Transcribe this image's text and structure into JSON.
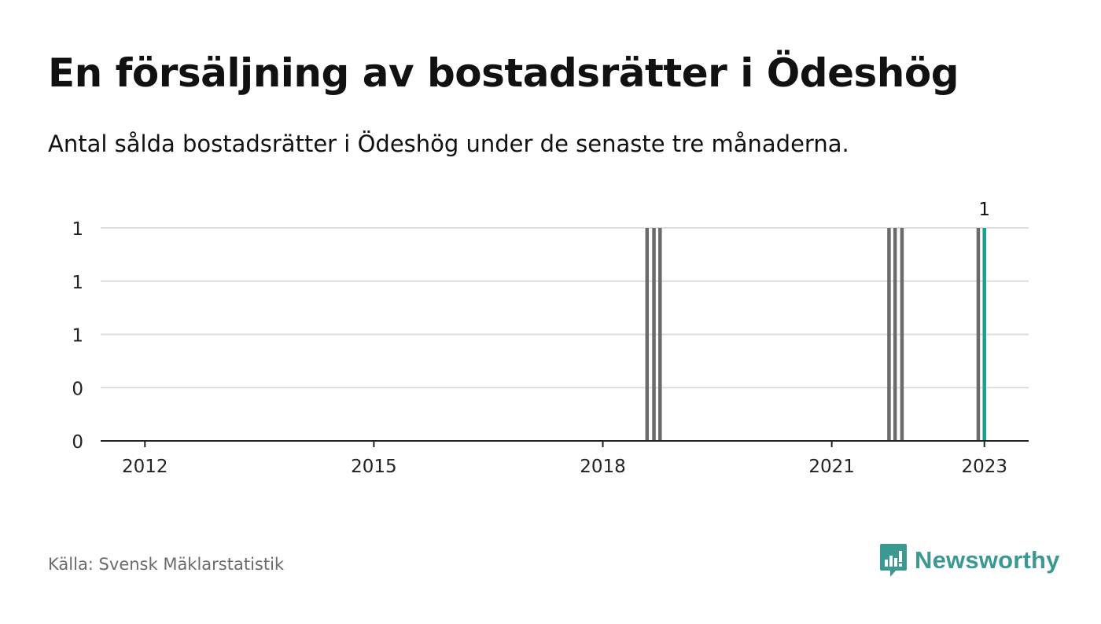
{
  "title": "En försäljning av bostadsrätter i Ödeshög",
  "subtitle": "Antal sålda bostadsrätter i Ödeshög under de senaste tre månaderna.",
  "source": "Källa: Svensk Mäklarstatistik",
  "brand": "Newsworthy",
  "colors": {
    "bar": "#6b6b6b",
    "highlight": "#1a9e93",
    "grid": "#dddddd",
    "axis": "#222222",
    "brand": "#3a9a92"
  },
  "chart_data": {
    "type": "bar",
    "title": "En försäljning av bostadsrätter i Ödeshög",
    "subtitle": "Antal sålda bostadsrätter i Ödeshög under de senaste tre månaderna.",
    "xlabel": "",
    "ylabel": "",
    "x_ticks": [
      "2012",
      "2015",
      "2018",
      "2021",
      "2023"
    ],
    "y_ticks": [
      {
        "value": 0,
        "label": "0"
      },
      {
        "value": 0.25,
        "label": "0"
      },
      {
        "value": 0.5,
        "label": "1"
      },
      {
        "value": 0.75,
        "label": "1"
      },
      {
        "value": 1,
        "label": "1"
      }
    ],
    "ylim": [
      0,
      1
    ],
    "xlim": [
      2011.42,
      2023.58
    ],
    "grid": true,
    "bars": [
      {
        "x": 2018.58,
        "value": 1,
        "highlight": false
      },
      {
        "x": 2018.67,
        "value": 1,
        "highlight": false
      },
      {
        "x": 2018.75,
        "value": 1,
        "highlight": false
      },
      {
        "x": 2021.75,
        "value": 1,
        "highlight": false
      },
      {
        "x": 2021.83,
        "value": 1,
        "highlight": false
      },
      {
        "x": 2021.92,
        "value": 1,
        "highlight": false
      },
      {
        "x": 2022.92,
        "value": 1,
        "highlight": false
      },
      {
        "x": 2023.0,
        "value": 1,
        "highlight": true,
        "label": "1"
      }
    ]
  }
}
